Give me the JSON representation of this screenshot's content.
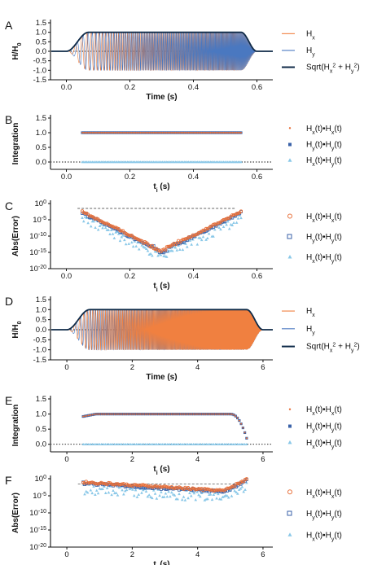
{
  "chart_data": [
    {
      "panel": "A",
      "type": "line",
      "xlabel": "Time (s)",
      "ylabel": "H/H0",
      "xlim": [
        -0.05,
        0.65
      ],
      "ylim": [
        -1.5,
        1.5
      ],
      "xticks": [
        0.0,
        0.2,
        0.4,
        0.6
      ],
      "yticks": [
        -1.5,
        -1.0,
        -0.5,
        0.0,
        0.5,
        1.0,
        1.5
      ],
      "zero_line": true,
      "legend": "right",
      "envelope": {
        "ramp_up": [
          0.0,
          0.07
        ],
        "ramp_down": [
          0.55,
          0.6
        ],
        "amplitude": 1.0
      },
      "chirp": {
        "start_hz": 25,
        "end_hz": 420
      },
      "series": [
        {
          "name": "Hx",
          "color": "#f08040",
          "kind": "cos"
        },
        {
          "name": "Hy",
          "color": "#4a78c0",
          "kind": "sin"
        },
        {
          "name": "Sqrt(Hx^2 + Hy^2)",
          "color": "#0e2a48",
          "kind": "envelope"
        }
      ]
    },
    {
      "panel": "B",
      "type": "scatter",
      "xlabel": "ti (s)",
      "ylabel": "Integration",
      "xlim": [
        -0.05,
        0.65
      ],
      "ylim": [
        -0.25,
        1.5
      ],
      "xticks": [
        0.0,
        0.2,
        0.4,
        0.6
      ],
      "yticks": [
        -0.5,
        0.0,
        0.5,
        1.0,
        1.5
      ],
      "zero_line": true,
      "legend": "right",
      "x_range": [
        0.05,
        0.55
      ],
      "series": [
        {
          "name": "Hx(t)•Hx(t)",
          "color": "#e8703a",
          "marker": "dot",
          "value": 1.0
        },
        {
          "name": "Hy(t)•Hy(t)",
          "color": "#3a62a8",
          "marker": "square",
          "value": 1.0
        },
        {
          "name": "Hx(t)•Hy(t)",
          "color": "#8ac8e8",
          "marker": "triangle",
          "value": 0.0
        }
      ]
    },
    {
      "panel": "C",
      "type": "scatter",
      "xlabel": "ti (s)",
      "ylabel": "Abs(Error)",
      "xlim": [
        -0.05,
        0.65
      ],
      "ylog": true,
      "ylim_log10": [
        -20,
        0
      ],
      "xticks": [
        0.0,
        0.2,
        0.4,
        0.6
      ],
      "yticks_log10": [
        0,
        -5,
        -10,
        -15,
        -20
      ],
      "reference_line_log10": -1.5,
      "legend": "right",
      "v_shape": {
        "left": [
          0.05,
          -2.5
        ],
        "min": [
          0.3,
          -14.5
        ],
        "right": [
          0.55,
          -2.5
        ]
      },
      "series": [
        {
          "name": "Hx(t)•Hx(t)",
          "color": "#e8703a",
          "marker": "circle"
        },
        {
          "name": "Hy(t)•Hy(t)",
          "color": "#3a62a8",
          "marker": "square"
        },
        {
          "name": "Hx(t)•Hy(t)",
          "color": "#8ac8e8",
          "marker": "triangle"
        }
      ]
    },
    {
      "panel": "D",
      "type": "line",
      "xlabel": "Time (s)",
      "ylabel": "H/H0",
      "xlim": [
        -0.5,
        6.3
      ],
      "ylim": [
        -1.5,
        1.5
      ],
      "xticks": [
        0,
        2,
        4,
        6
      ],
      "yticks": [
        -1.5,
        -1.0,
        -0.5,
        0.0,
        0.5,
        1.0,
        1.5
      ],
      "zero_line": true,
      "legend": "right",
      "envelope": {
        "ramp_up": [
          0.0,
          0.7
        ],
        "ramp_down": [
          5.5,
          6.0
        ],
        "amplitude": 1.0
      },
      "chirp": {
        "start_hz": 2.5,
        "end_hz": 80
      },
      "series": [
        {
          "name": "Hx",
          "color": "#f08040",
          "kind": "cos"
        },
        {
          "name": "Hy",
          "color": "#4a78c0",
          "kind": "sin"
        },
        {
          "name": "Sqrt(Hx^2 + Hy^2)",
          "color": "#0e2a48",
          "kind": "envelope"
        }
      ]
    },
    {
      "panel": "E",
      "type": "scatter",
      "xlabel": "ti (s)",
      "ylabel": "Integration",
      "xlim": [
        -0.5,
        6.3
      ],
      "ylim": [
        -0.25,
        1.5
      ],
      "xticks": [
        0,
        2,
        4,
        6
      ],
      "yticks": [
        -0.5,
        0.0,
        0.5,
        1.0,
        1.5
      ],
      "zero_line": true,
      "legend": "right",
      "x_range": [
        0.5,
        5.5
      ],
      "falloff": {
        "start": 5.0,
        "end": 5.5,
        "end_value": 0.2
      },
      "series": [
        {
          "name": "Hx(t)•Hx(t)",
          "color": "#e8703a",
          "marker": "dot",
          "value": 1.0
        },
        {
          "name": "Hy(t)•Hy(t)",
          "color": "#3a62a8",
          "marker": "square",
          "value": 1.0
        },
        {
          "name": "Hx(t)•Hy(t)",
          "color": "#8ac8e8",
          "marker": "triangle",
          "value": 0.0
        }
      ]
    },
    {
      "panel": "F",
      "type": "scatter",
      "xlabel": "ti (s)",
      "ylabel": "Abs(Error)",
      "xlim": [
        -0.5,
        6.3
      ],
      "ylog": true,
      "ylim_log10": [
        -20,
        0
      ],
      "xticks": [
        0,
        2,
        4,
        6
      ],
      "yticks_log10": [
        0,
        -5,
        -10,
        -15,
        -20
      ],
      "reference_line_log10": -1.5,
      "legend": "right",
      "profile": {
        "start": [
          0.5,
          -1.0
        ],
        "flat": [
          4.8,
          -3.5
        ],
        "end": [
          5.5,
          -0.2
        ]
      },
      "series": [
        {
          "name": "Hx(t)•Hx(t)",
          "color": "#e8703a",
          "marker": "circle"
        },
        {
          "name": "Hy(t)•Hy(t)",
          "color": "#3a62a8",
          "marker": "square"
        },
        {
          "name": "Hx(t)•Hy(t)",
          "color": "#8ac8e8",
          "marker": "triangle"
        }
      ]
    }
  ]
}
